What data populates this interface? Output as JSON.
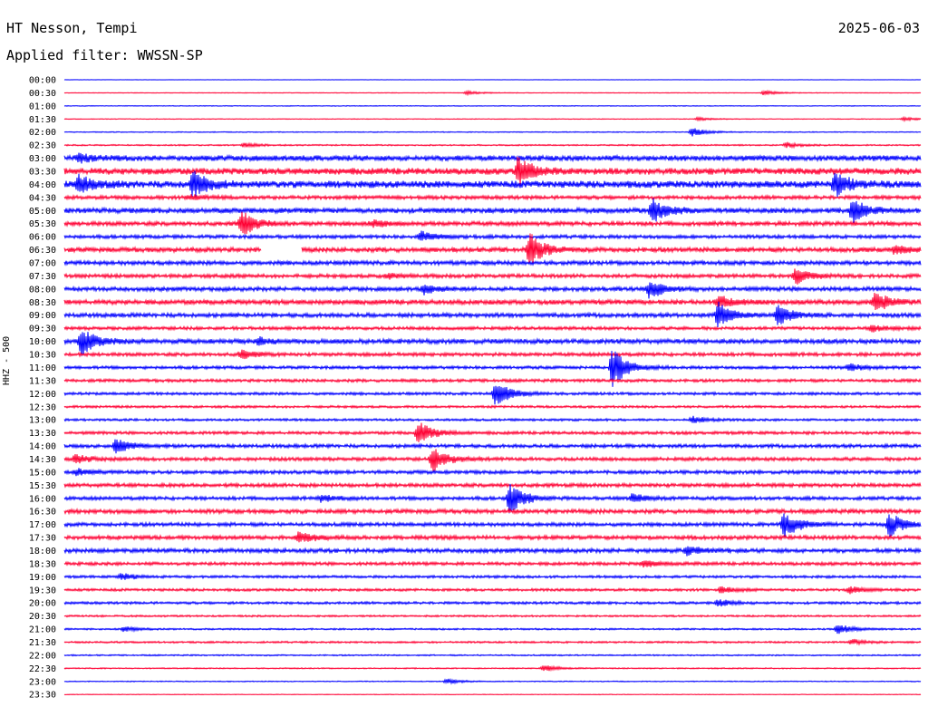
{
  "header": {
    "station": "HT Nesson, Tempi",
    "date": "2025-06-03",
    "filter": "Applied filter: WWSSN-SP",
    "channel": "HHZ - 500"
  },
  "colors": {
    "trace_even": "#0000ff",
    "trace_odd": "#ff0033"
  },
  "chart_data": {
    "type": "line",
    "title": "HT Nesson, Tempi",
    "ylabel": "HHZ - 500",
    "rows": [
      "00:00",
      "00:30",
      "01:00",
      "01:30",
      "02:00",
      "02:30",
      "03:00",
      "03:30",
      "04:00",
      "04:30",
      "05:00",
      "05:30",
      "06:00",
      "06:30",
      "07:00",
      "07:30",
      "08:00",
      "08:30",
      "09:00",
      "09:30",
      "10:00",
      "10:30",
      "11:00",
      "11:30",
      "12:00",
      "12:30",
      "13:00",
      "13:30",
      "14:00",
      "14:30",
      "15:00",
      "15:30",
      "16:00",
      "16:30",
      "17:00",
      "17:30",
      "18:00",
      "18:30",
      "19:00",
      "19:30",
      "20:00",
      "20:30",
      "21:00",
      "21:30",
      "22:00",
      "22:30",
      "23:00",
      "23:30"
    ],
    "noise_level": [
      0.2,
      0.3,
      0.3,
      0.3,
      0.4,
      0.6,
      2.4,
      2.8,
      3.0,
      1.6,
      2.2,
      1.8,
      1.5,
      2.0,
      1.8,
      1.6,
      1.8,
      2.0,
      1.8,
      1.4,
      2.0,
      1.5,
      1.3,
      1.3,
      1.2,
      1.0,
      1.0,
      1.3,
      1.5,
      1.5,
      1.5,
      1.6,
      1.5,
      1.8,
      1.6,
      1.7,
      1.8,
      1.4,
      1.1,
      1.1,
      1.1,
      0.8,
      0.7,
      0.8,
      0.6,
      0.5,
      0.4,
      0.3
    ],
    "events": [
      {
        "row": "00:30",
        "t": 14.1,
        "amp": 2
      },
      {
        "row": "00:30",
        "t": 24.5,
        "amp": 2.5
      },
      {
        "row": "01:30",
        "t": 22.2,
        "amp": 2
      },
      {
        "row": "01:30",
        "t": 29.4,
        "amp": 2
      },
      {
        "row": "02:00",
        "t": 22.0,
        "amp": 5
      },
      {
        "row": "02:30",
        "t": 25.3,
        "amp": 3
      },
      {
        "row": "02:30",
        "t": 6.3,
        "amp": 2.5
      },
      {
        "row": "03:00",
        "t": 0.5,
        "amp": 4
      },
      {
        "row": "03:30",
        "t": 15.9,
        "amp": 16
      },
      {
        "row": "04:00",
        "t": 0.5,
        "amp": 10
      },
      {
        "row": "04:00",
        "t": 4.5,
        "amp": 15
      },
      {
        "row": "04:00",
        "t": 27.0,
        "amp": 14
      },
      {
        "row": "04:30",
        "t": 4.4,
        "amp": 3
      },
      {
        "row": "05:00",
        "t": 20.6,
        "amp": 14
      },
      {
        "row": "05:00",
        "t": 27.6,
        "amp": 14
      },
      {
        "row": "05:30",
        "t": 6.2,
        "amp": 15
      },
      {
        "row": "05:30",
        "t": 10.8,
        "amp": 4
      },
      {
        "row": "06:00",
        "t": 12.5,
        "amp": 6
      },
      {
        "row": "06:30",
        "t": 16.3,
        "amp": 18
      },
      {
        "row": "06:30",
        "t": 29.1,
        "amp": 5
      },
      {
        "row": "07:30",
        "t": 25.6,
        "amp": 10
      },
      {
        "row": "07:30",
        "t": 11.3,
        "amp": 3
      },
      {
        "row": "08:00",
        "t": 20.5,
        "amp": 12
      },
      {
        "row": "08:00",
        "t": 12.6,
        "amp": 5
      },
      {
        "row": "08:30",
        "t": 22.9,
        "amp": 8
      },
      {
        "row": "08:30",
        "t": 28.4,
        "amp": 12
      },
      {
        "row": "09:00",
        "t": 22.9,
        "amp": 14
      },
      {
        "row": "09:00",
        "t": 25.0,
        "amp": 12
      },
      {
        "row": "09:30",
        "t": 28.3,
        "amp": 4
      },
      {
        "row": "10:00",
        "t": 0.6,
        "amp": 16
      },
      {
        "row": "10:00",
        "t": 6.8,
        "amp": 4
      },
      {
        "row": "10:30",
        "t": 6.2,
        "amp": 5
      },
      {
        "row": "11:00",
        "t": 19.2,
        "amp": 22
      },
      {
        "row": "11:00",
        "t": 27.5,
        "amp": 4
      },
      {
        "row": "12:00",
        "t": 15.1,
        "amp": 16
      },
      {
        "row": "13:00",
        "t": 22.0,
        "amp": 4
      },
      {
        "row": "13:30",
        "t": 12.4,
        "amp": 14
      },
      {
        "row": "14:00",
        "t": 1.8,
        "amp": 8
      },
      {
        "row": "14:30",
        "t": 12.9,
        "amp": 14
      },
      {
        "row": "14:30",
        "t": 0.4,
        "amp": 5
      },
      {
        "row": "15:00",
        "t": 0.4,
        "amp": 4
      },
      {
        "row": "16:00",
        "t": 15.6,
        "amp": 18
      },
      {
        "row": "16:00",
        "t": 9.0,
        "amp": 4
      },
      {
        "row": "16:00",
        "t": 19.9,
        "amp": 5
      },
      {
        "row": "17:00",
        "t": 25.2,
        "amp": 16
      },
      {
        "row": "17:00",
        "t": 28.9,
        "amp": 14
      },
      {
        "row": "17:30",
        "t": 8.2,
        "amp": 7
      },
      {
        "row": "18:00",
        "t": 21.8,
        "amp": 5
      },
      {
        "row": "18:30",
        "t": 20.3,
        "amp": 4
      },
      {
        "row": "19:00",
        "t": 2.0,
        "amp": 4
      },
      {
        "row": "19:30",
        "t": 23.0,
        "amp": 4
      },
      {
        "row": "19:30",
        "t": 27.5,
        "amp": 4
      },
      {
        "row": "20:00",
        "t": 22.9,
        "amp": 4
      },
      {
        "row": "21:00",
        "t": 27.1,
        "amp": 6
      },
      {
        "row": "21:00",
        "t": 2.1,
        "amp": 3
      },
      {
        "row": "21:30",
        "t": 27.6,
        "amp": 3
      },
      {
        "row": "22:30",
        "t": 16.8,
        "amp": 4
      },
      {
        "row": "23:00",
        "t": 13.4,
        "amp": 3
      }
    ],
    "gaps": [
      {
        "row": "06:30",
        "t_start": 6.9,
        "t_end": 8.3
      }
    ],
    "xrange_min": [
      0,
      30
    ],
    "grid": false
  }
}
